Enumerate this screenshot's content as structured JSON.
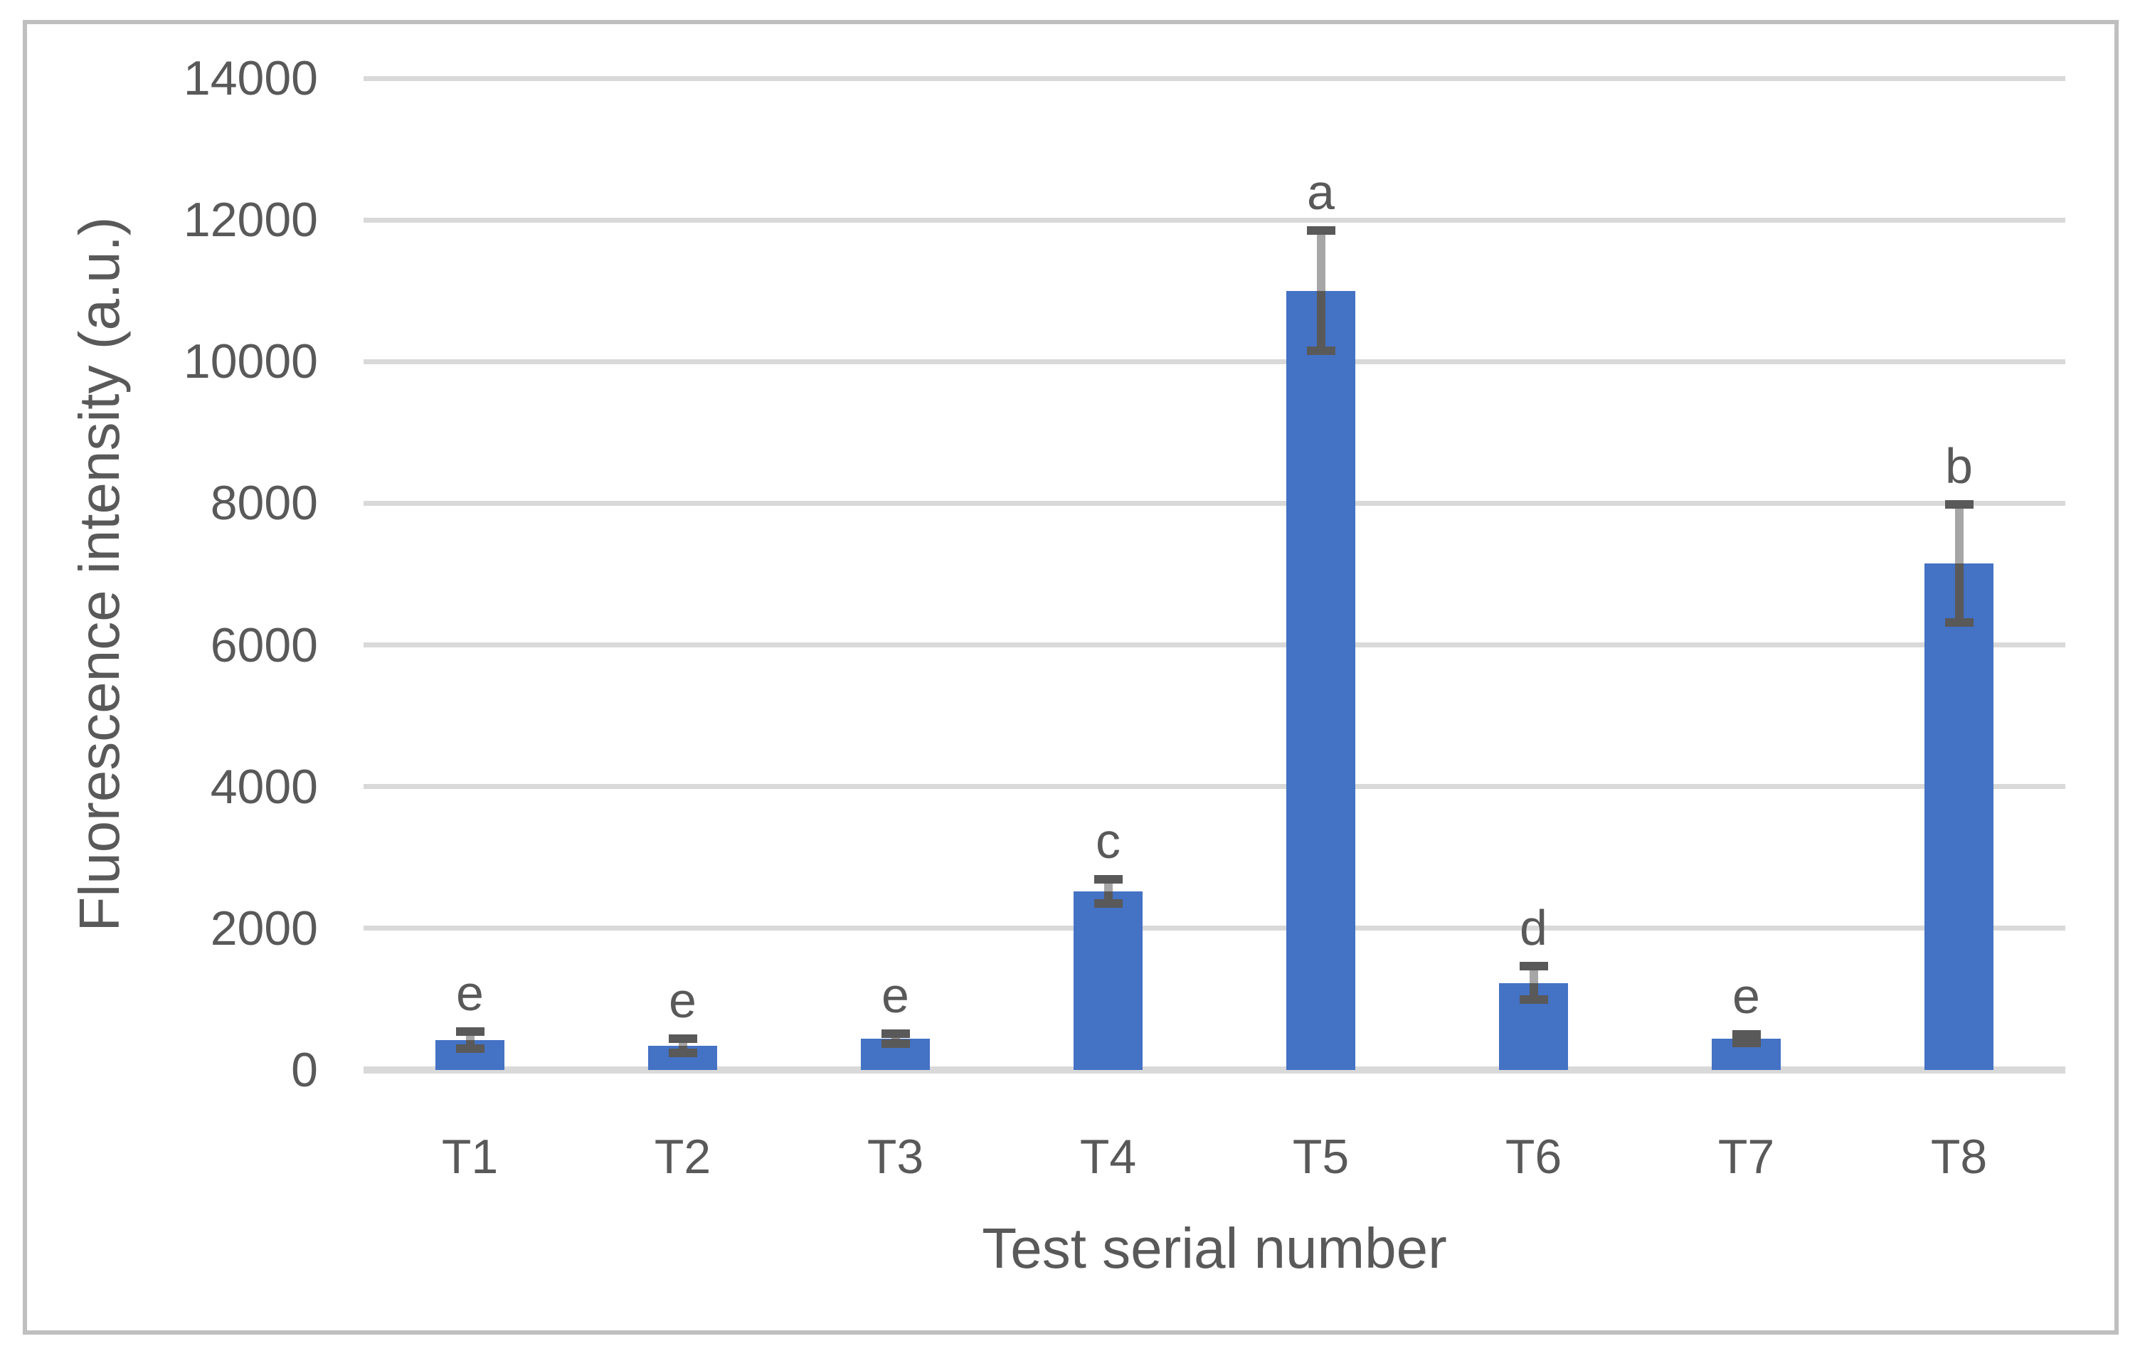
{
  "chart_data": {
    "type": "bar",
    "title": "",
    "xlabel": "Test serial number",
    "ylabel": "Fluorescence intensity (a.u.)",
    "categories": [
      "T1",
      "T2",
      "T3",
      "T4",
      "T5",
      "T6",
      "T7",
      "T8"
    ],
    "series": [
      {
        "name": "Fluorescence intensity",
        "values": [
          420,
          340,
          440,
          2520,
          11000,
          1230,
          440,
          7150
        ],
        "errors": [
          120,
          100,
          70,
          170,
          850,
          240,
          60,
          830
        ],
        "significance_letters": [
          "e",
          "e",
          "e",
          "c",
          "a",
          "d",
          "e",
          "b"
        ]
      }
    ],
    "ylim": [
      0,
      14000
    ],
    "ytick_step": 2000,
    "yticks": [
      0,
      2000,
      4000,
      6000,
      8000,
      10000,
      12000,
      14000
    ],
    "grid": "horizontal",
    "legend": "none",
    "colors": {
      "bar": "#4472C4",
      "gridline": "#D9D9D9",
      "zero_axis_line": "#D9D9D9",
      "error_line_above_bar": "#A6A6A6",
      "error_line_in_bar": "#595959",
      "error_cap": "#595959",
      "text": "#595959",
      "frame_border": "#BFBFBF",
      "background": "#FFFFFF"
    }
  }
}
